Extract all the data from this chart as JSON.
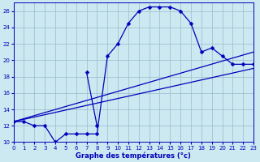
{
  "xlabel": "Graphe des températures (°c)",
  "xlim": [
    0,
    23
  ],
  "ylim": [
    10,
    27
  ],
  "xticks": [
    0,
    1,
    2,
    3,
    4,
    5,
    6,
    7,
    8,
    9,
    10,
    11,
    12,
    13,
    14,
    15,
    16,
    17,
    18,
    19,
    20,
    21,
    22,
    23
  ],
  "yticks": [
    10,
    12,
    14,
    16,
    18,
    20,
    22,
    24,
    26
  ],
  "bg_color": "#cce8f0",
  "line_color": "#0000bb",
  "grid_color": "#99bbcc",
  "series": [
    {
      "x": [
        0,
        1,
        2,
        3,
        4,
        5,
        6,
        7,
        8,
        9,
        10,
        11,
        12,
        13,
        14,
        15,
        16,
        17,
        18,
        19,
        20,
        21,
        22,
        23
      ],
      "y": [
        12.5,
        12.5,
        12.0,
        12.0,
        10.0,
        11.0,
        11.0,
        11.0,
        11.0,
        20.5,
        22.0,
        24.5,
        26.0,
        26.5,
        26.5,
        26.5,
        26.0,
        24.5,
        21.0,
        21.5,
        20.5,
        19.5,
        19.5,
        19.5
      ],
      "marker": "D",
      "markersize": 2.5,
      "linewidth": 0.9
    },
    {
      "x": [
        7,
        8
      ],
      "y": [
        18.5,
        12.0
      ],
      "marker": "D",
      "markersize": 2.5,
      "linewidth": 0.9
    },
    {
      "x": [
        0,
        23
      ],
      "y": [
        12.5,
        21.0
      ],
      "marker": null,
      "markersize": 0,
      "linewidth": 0.9
    },
    {
      "x": [
        0,
        23
      ],
      "y": [
        12.5,
        19.0
      ],
      "marker": null,
      "markersize": 0,
      "linewidth": 0.9
    }
  ]
}
